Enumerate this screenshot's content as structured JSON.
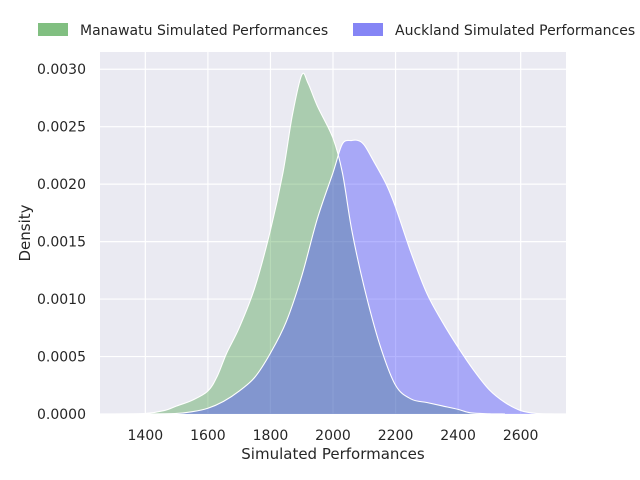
{
  "chart_data": {
    "type": "area",
    "title": "",
    "xlabel": "Simulated Performances",
    "ylabel": "Density",
    "xlim": [
      1255,
      2745
    ],
    "ylim": [
      0,
      0.00315
    ],
    "xticks": [
      1400,
      1600,
      1800,
      2000,
      2200,
      2400,
      2600
    ],
    "xtick_labels": [
      "1400",
      "1600",
      "1800",
      "2000",
      "2200",
      "2400",
      "2600"
    ],
    "yticks": [
      0,
      0.0005,
      0.001,
      0.0015,
      0.002,
      0.0025,
      0.003
    ],
    "ytick_labels": [
      "0.0000",
      "0.0005",
      "0.0010",
      "0.0015",
      "0.0020",
      "0.0025",
      "0.0030"
    ],
    "grid": true,
    "legend_position": "top",
    "series": [
      {
        "name": "Manawatu Simulated Performances",
        "color": "#81b781",
        "fill_color": "#4c9f4c",
        "fill_opacity": 0.4,
        "x": [
          1300,
          1400,
          1460,
          1500,
          1550,
          1600,
          1630,
          1660,
          1700,
          1750,
          1800,
          1840,
          1870,
          1900,
          1920,
          1950,
          2000,
          2030,
          2060,
          2100,
          2150,
          2200,
          2250,
          2300,
          2350,
          2400,
          2440,
          2500,
          2550
        ],
        "y": [
          0,
          5e-06,
          3e-05,
          7e-05,
          0.00012,
          0.0002,
          0.00033,
          0.00053,
          0.00075,
          0.0011,
          0.0016,
          0.0021,
          0.0026,
          0.00295,
          0.00288,
          0.00268,
          0.0024,
          0.0021,
          0.0016,
          0.0011,
          0.0006,
          0.00025,
          0.00013,
          0.0001,
          7e-05,
          4e-05,
          1e-05,
          2e-06,
          0
        ]
      },
      {
        "name": "Auckland Simulated Performances",
        "color": "#8787ee",
        "fill_color": "#4646ff",
        "fill_opacity": 0.4,
        "x": [
          1400,
          1500,
          1550,
          1600,
          1650,
          1700,
          1750,
          1800,
          1850,
          1900,
          1950,
          2000,
          2030,
          2060,
          2080,
          2100,
          2130,
          2170,
          2200,
          2250,
          2300,
          2350,
          2400,
          2450,
          2500,
          2550,
          2600,
          2650,
          2710
        ],
        "y": [
          0,
          5e-06,
          2e-05,
          5e-05,
          0.00011,
          0.0002,
          0.00032,
          0.00053,
          0.0008,
          0.0012,
          0.0017,
          0.0021,
          0.00235,
          0.00238,
          0.00238,
          0.00234,
          0.0022,
          0.002,
          0.0018,
          0.0014,
          0.00105,
          0.0008,
          0.00058,
          0.00038,
          0.00021,
          0.0001,
          3e-05,
          5e-06,
          0
        ]
      }
    ]
  }
}
